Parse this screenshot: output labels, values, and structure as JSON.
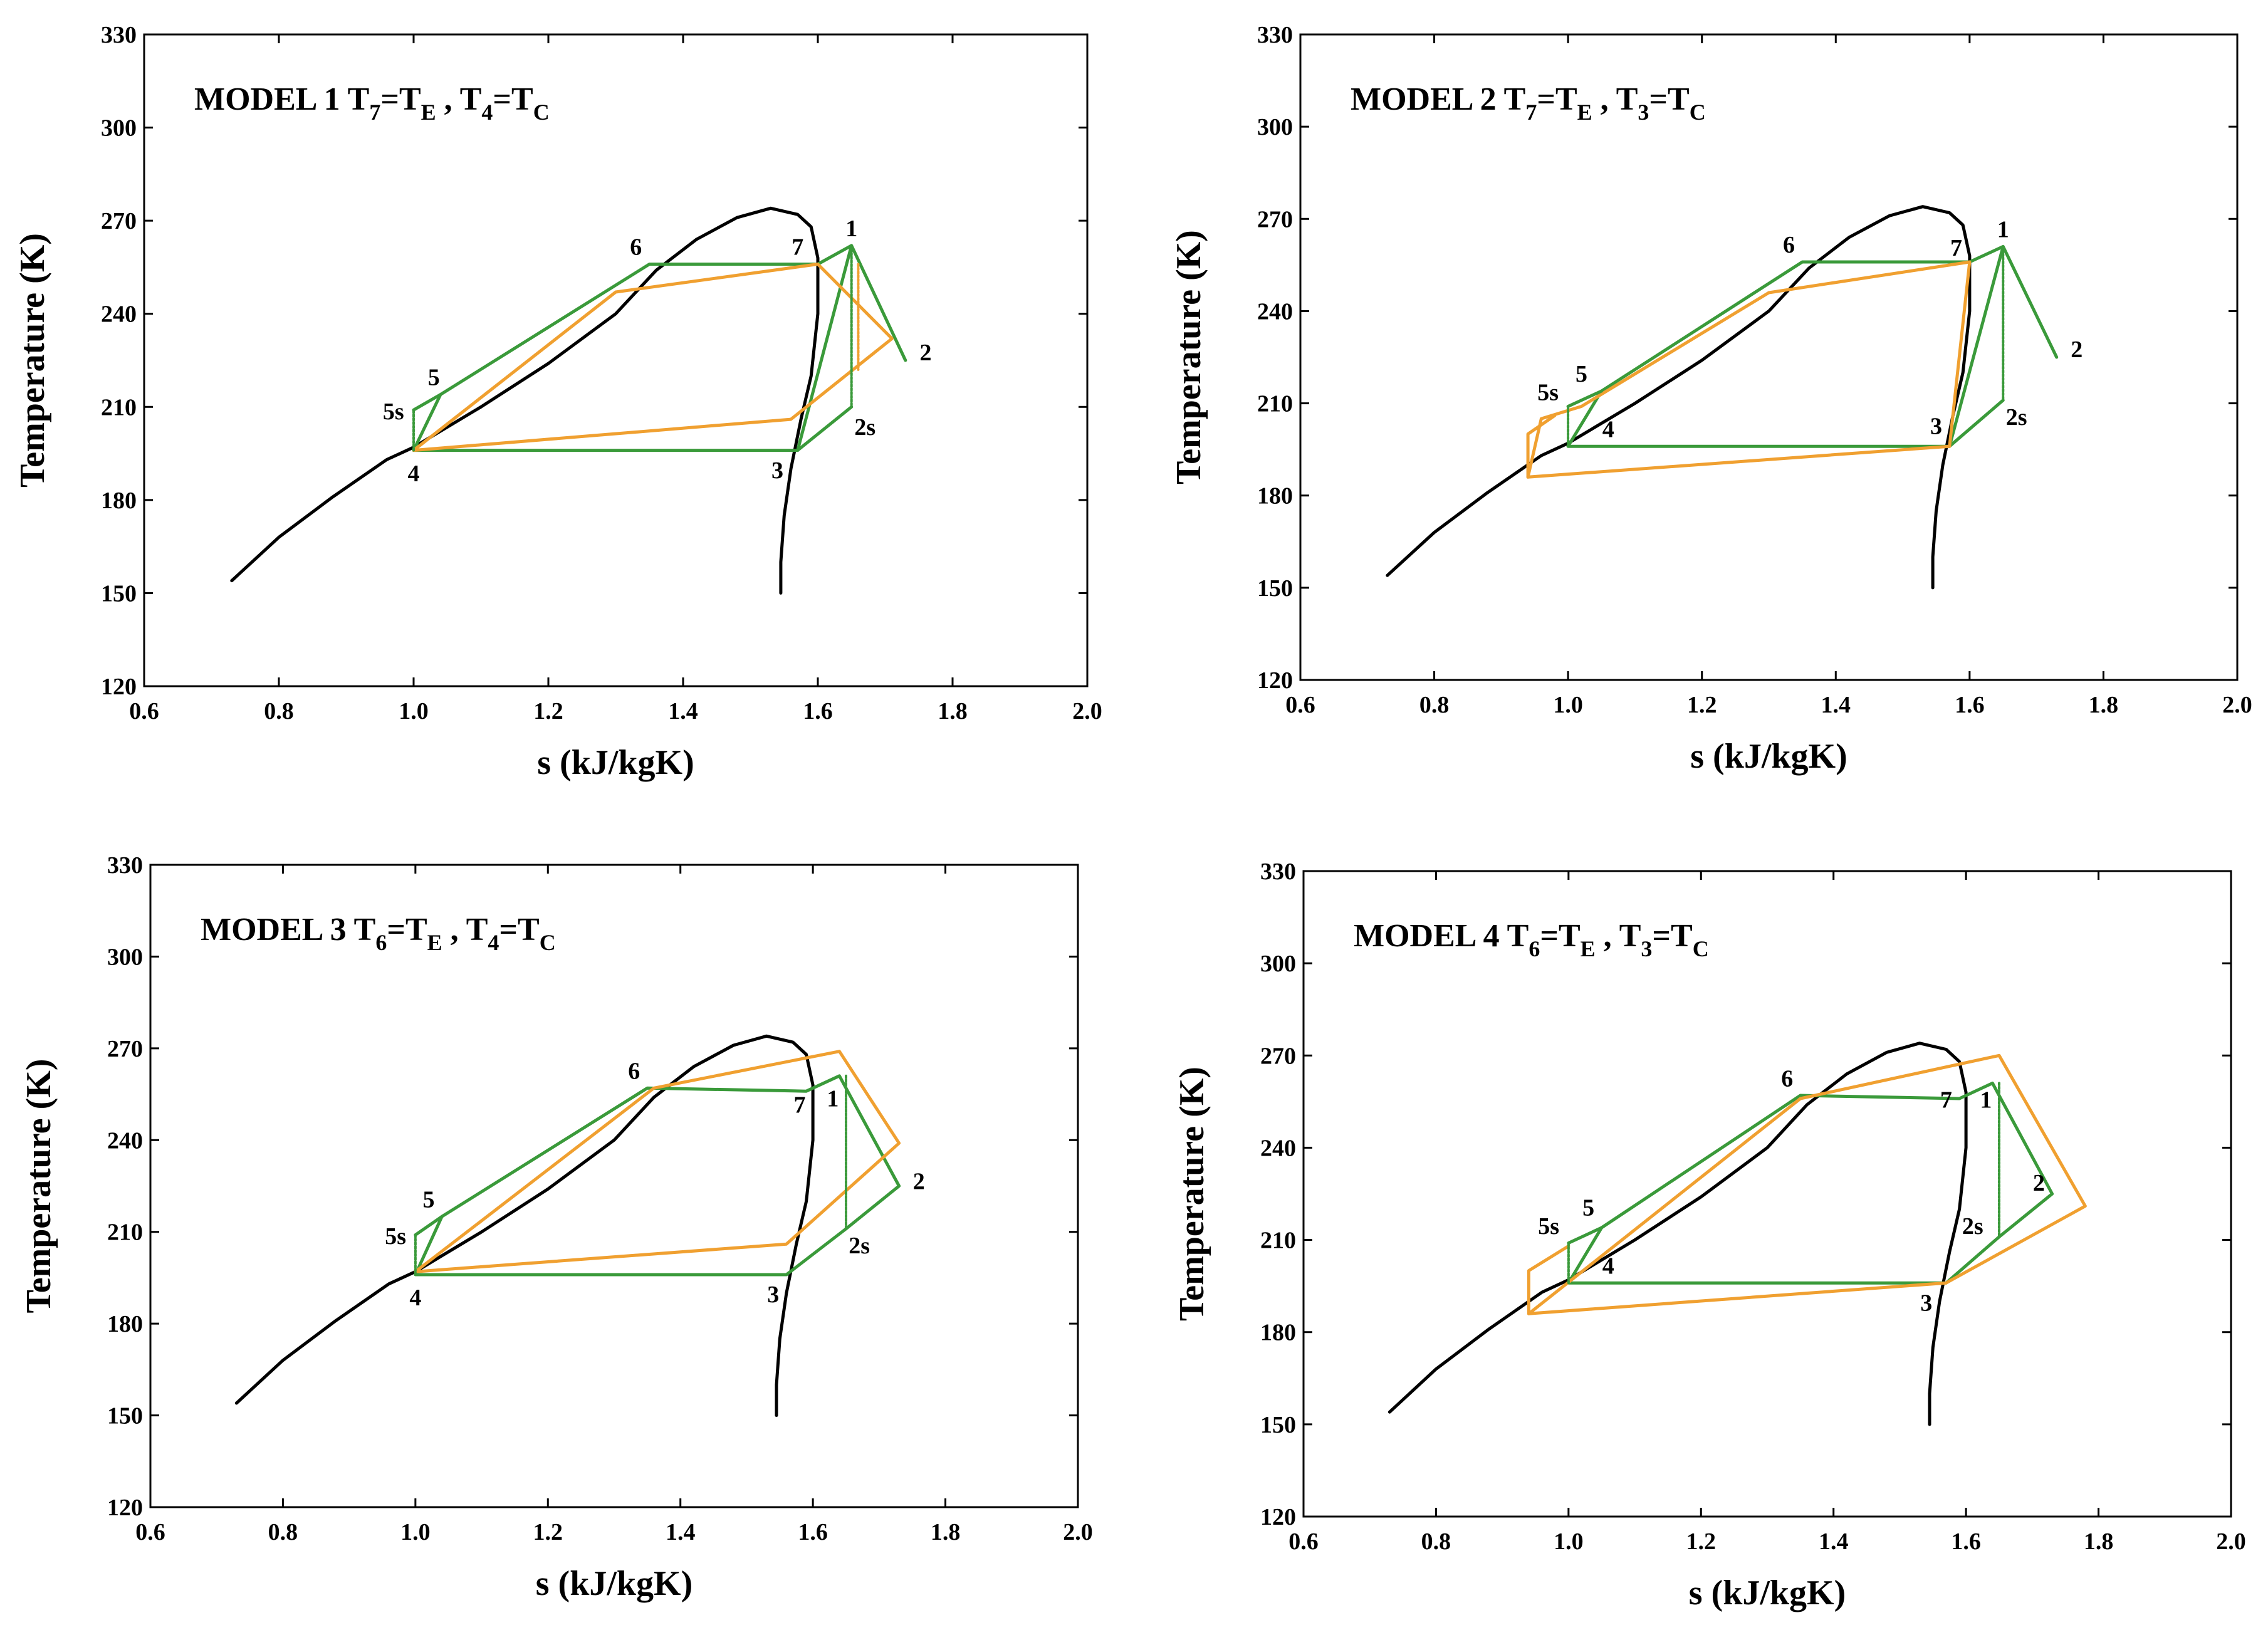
{
  "figure": {
    "charts_note": "Four T-s diagrams (refrigeration cycle models)",
    "colors": {
      "dome": "#000000",
      "green_cycle": "#3a9a3a",
      "orange_cycle": "#f0a030",
      "frame": "#000000"
    }
  },
  "chart_data": [
    {
      "type": "line",
      "title_parts": {
        "model": "MODEL 1",
        "a_sym": "T",
        "a_sub": "7",
        "a_eq": "=T",
        "a_eq_sub": "E",
        "sep": " , ",
        "b_sym": "T",
        "b_sub": "4",
        "b_eq": "=T",
        "b_eq_sub": "C"
      },
      "xlabel": "s (kJ/kgK)",
      "ylabel": "Temperature (K)",
      "xlim": [
        0.6,
        2.0
      ],
      "ylim": [
        120,
        330
      ],
      "xticks": [
        "0.6",
        "0.8",
        "1.0",
        "1.2",
        "1.4",
        "1.6",
        "1.8",
        "2.0"
      ],
      "yticks": [
        "120",
        "150",
        "180",
        "210",
        "240",
        "270",
        "300",
        "330"
      ],
      "series": [
        {
          "name": "saturation-dome",
          "color": "#000000",
          "width": 5,
          "dash": false,
          "x": [
            0.73,
            0.8,
            0.88,
            0.96,
            1.0,
            1.1,
            1.2,
            1.3,
            1.36,
            1.42,
            1.48,
            1.53,
            1.57,
            1.59,
            1.6,
            1.6,
            1.59,
            1.575,
            1.56,
            1.55,
            1.545,
            1.545
          ],
          "y": [
            154,
            168,
            181,
            193,
            197,
            210,
            224,
            240,
            254,
            264,
            271,
            274,
            272,
            268,
            258,
            240,
            220,
            206,
            190,
            175,
            160,
            150
          ]
        },
        {
          "name": "green-cycle",
          "color": "#3a9a3a",
          "width": 5,
          "dash": false,
          "x": [
            1.0,
            1.57,
            1.65,
            1.73,
            1.65,
            1.6,
            1.35,
            1.04,
            1.0
          ],
          "y": [
            196,
            196,
            262,
            225,
            262,
            256,
            256,
            214,
            196
          ]
        },
        {
          "name": "green-hp-lower",
          "color": "#3a9a3a",
          "width": 5,
          "dash": false,
          "x": [
            1.57,
            1.65
          ],
          "y": [
            196,
            210
          ]
        },
        {
          "name": "orange-cycle",
          "color": "#f0a030",
          "width": 5,
          "dash": false,
          "x": [
            1.0,
            1.56,
            1.71,
            1.6,
            1.3,
            1.0
          ],
          "y": [
            196,
            206,
            232,
            256,
            247,
            196
          ]
        },
        {
          "name": "green-isentropic",
          "color": "#3a9a3a",
          "width": 4,
          "dash": true,
          "x": [
            1.65,
            1.65
          ],
          "y": [
            262,
            210
          ]
        },
        {
          "name": "orange-isentropic",
          "color": "#f0a030",
          "width": 4,
          "dash": true,
          "x": [
            1.66,
            1.66
          ],
          "y": [
            256,
            222
          ]
        },
        {
          "name": "green-5s-line",
          "color": "#3a9a3a",
          "width": 4,
          "dash": true,
          "x": [
            1.0,
            1.0
          ],
          "y": [
            196,
            209
          ]
        },
        {
          "name": "green-5s-top",
          "color": "#3a9a3a",
          "width": 5,
          "dash": false,
          "x": [
            1.0,
            1.04
          ],
          "y": [
            209,
            214
          ]
        }
      ],
      "point_labels": [
        {
          "text": "1",
          "x": 1.65,
          "y": 265
        },
        {
          "text": "2",
          "x": 1.76,
          "y": 225
        },
        {
          "text": "2s",
          "x": 1.67,
          "y": 201
        },
        {
          "text": "3",
          "x": 1.54,
          "y": 187
        },
        {
          "text": "4",
          "x": 1.0,
          "y": 186
        },
        {
          "text": "5",
          "x": 1.03,
          "y": 217
        },
        {
          "text": "5s",
          "x": 0.97,
          "y": 206
        },
        {
          "text": "6",
          "x": 1.33,
          "y": 259
        },
        {
          "text": "7",
          "x": 1.57,
          "y": 259
        }
      ]
    },
    {
      "type": "line",
      "title_parts": {
        "model": "MODEL 2",
        "a_sym": "T",
        "a_sub": "7",
        "a_eq": "=T",
        "a_eq_sub": "E",
        "sep": " , ",
        "b_sym": "T",
        "b_sub": "3",
        "b_eq": "=T",
        "b_eq_sub": "C"
      },
      "xlabel": "s (kJ/kgK)",
      "ylabel": "Temperature (K)",
      "xlim": [
        0.6,
        2.0
      ],
      "ylim": [
        120,
        330
      ],
      "xticks": [
        "0.6",
        "0.8",
        "1.0",
        "1.2",
        "1.4",
        "1.6",
        "1.8",
        "2.0"
      ],
      "yticks": [
        "120",
        "150",
        "180",
        "210",
        "240",
        "270",
        "300",
        "330"
      ],
      "series": [
        {
          "name": "saturation-dome",
          "color": "#000000",
          "width": 5,
          "dash": false,
          "x": [
            0.73,
            0.8,
            0.88,
            0.96,
            1.0,
            1.1,
            1.2,
            1.3,
            1.36,
            1.42,
            1.48,
            1.53,
            1.57,
            1.59,
            1.6,
            1.6,
            1.59,
            1.575,
            1.56,
            1.55,
            1.545,
            1.545
          ],
          "y": [
            154,
            168,
            181,
            193,
            197,
            210,
            224,
            240,
            254,
            264,
            271,
            274,
            272,
            268,
            258,
            240,
            220,
            206,
            190,
            175,
            160,
            150
          ]
        },
        {
          "name": "green-cycle",
          "color": "#3a9a3a",
          "width": 5,
          "dash": false,
          "x": [
            1.0,
            1.57,
            1.65,
            1.73,
            1.65,
            1.6,
            1.35,
            1.05,
            1.0
          ],
          "y": [
            196,
            196,
            261,
            225,
            261,
            256,
            256,
            214,
            196
          ]
        },
        {
          "name": "green-hp-lower",
          "color": "#3a9a3a",
          "width": 5,
          "dash": false,
          "x": [
            1.57,
            1.65
          ],
          "y": [
            196,
            211
          ]
        },
        {
          "name": "orange-cycle",
          "color": "#f0a030",
          "width": 5,
          "dash": false,
          "x": [
            0.94,
            1.57,
            1.6,
            1.3,
            1.02,
            0.96,
            0.94
          ],
          "y": [
            186,
            196,
            256,
            246,
            209,
            205,
            186
          ]
        },
        {
          "name": "orange-5s-box",
          "color": "#f0a030",
          "width": 5,
          "dash": false,
          "x": [
            0.94,
            0.94,
            0.98
          ],
          "y": [
            186,
            200,
            206
          ]
        },
        {
          "name": "green-isentropic",
          "color": "#3a9a3a",
          "width": 4,
          "dash": true,
          "x": [
            1.65,
            1.65
          ],
          "y": [
            261,
            211
          ]
        },
        {
          "name": "green-5s-line",
          "color": "#3a9a3a",
          "width": 4,
          "dash": true,
          "x": [
            1.0,
            1.0
          ],
          "y": [
            196,
            209
          ]
        },
        {
          "name": "green-5s-top",
          "color": "#3a9a3a",
          "width": 5,
          "dash": false,
          "x": [
            1.0,
            1.05
          ],
          "y": [
            209,
            214
          ]
        }
      ],
      "point_labels": [
        {
          "text": "1",
          "x": 1.65,
          "y": 264
        },
        {
          "text": "2",
          "x": 1.76,
          "y": 225
        },
        {
          "text": "2s",
          "x": 1.67,
          "y": 203
        },
        {
          "text": "3",
          "x": 1.55,
          "y": 200
        },
        {
          "text": "4",
          "x": 1.06,
          "y": 199
        },
        {
          "text": "5",
          "x": 1.02,
          "y": 217
        },
        {
          "text": "5s",
          "x": 0.97,
          "y": 211
        },
        {
          "text": "6",
          "x": 1.33,
          "y": 259
        },
        {
          "text": "7",
          "x": 1.58,
          "y": 258
        }
      ]
    },
    {
      "type": "line",
      "title_parts": {
        "model": "MODEL 3",
        "a_sym": "T",
        "a_sub": "6",
        "a_eq": "=T",
        "a_eq_sub": "E",
        "sep": " , ",
        "b_sym": "T",
        "b_sub": "4",
        "b_eq": "=T",
        "b_eq_sub": "C"
      },
      "xlabel": "s (kJ/kgK)",
      "ylabel": "Temperature (K)",
      "xlim": [
        0.6,
        2.0
      ],
      "ylim": [
        120,
        330
      ],
      "xticks": [
        "0.6",
        "0.8",
        "1.0",
        "1.2",
        "1.4",
        "1.6",
        "1.8",
        "2.0"
      ],
      "yticks": [
        "120",
        "150",
        "180",
        "210",
        "240",
        "270",
        "300",
        "330"
      ],
      "series": [
        {
          "name": "saturation-dome",
          "color": "#000000",
          "width": 5,
          "dash": false,
          "x": [
            0.73,
            0.8,
            0.88,
            0.96,
            1.0,
            1.1,
            1.2,
            1.3,
            1.36,
            1.42,
            1.48,
            1.53,
            1.57,
            1.59,
            1.6,
            1.6,
            1.59,
            1.575,
            1.56,
            1.55,
            1.545,
            1.545
          ],
          "y": [
            154,
            168,
            181,
            193,
            197,
            210,
            224,
            240,
            254,
            264,
            271,
            274,
            272,
            268,
            258,
            240,
            220,
            206,
            190,
            175,
            160,
            150
          ]
        },
        {
          "name": "green-cycle",
          "color": "#3a9a3a",
          "width": 5,
          "dash": false,
          "x": [
            1.0,
            1.56,
            1.65,
            1.73,
            1.64,
            1.59,
            1.35,
            1.04,
            1.0
          ],
          "y": [
            196,
            196,
            211,
            225,
            261,
            256,
            257,
            215,
            196
          ]
        },
        {
          "name": "orange-cycle",
          "color": "#f0a030",
          "width": 5,
          "dash": false,
          "x": [
            1.0,
            1.56,
            1.73,
            1.64,
            1.36,
            1.0
          ],
          "y": [
            197,
            206,
            239,
            269,
            257,
            197
          ]
        },
        {
          "name": "green-isentropic",
          "color": "#3a9a3a",
          "width": 4,
          "dash": true,
          "x": [
            1.65,
            1.65
          ],
          "y": [
            261,
            211
          ]
        },
        {
          "name": "green-5s-line",
          "color": "#3a9a3a",
          "width": 4,
          "dash": true,
          "x": [
            1.0,
            1.0
          ],
          "y": [
            196,
            209
          ]
        },
        {
          "name": "green-5s-top",
          "color": "#3a9a3a",
          "width": 5,
          "dash": false,
          "x": [
            1.0,
            1.04
          ],
          "y": [
            209,
            215
          ]
        }
      ],
      "point_labels": [
        {
          "text": "1",
          "x": 1.63,
          "y": 251
        },
        {
          "text": "2",
          "x": 1.76,
          "y": 224
        },
        {
          "text": "2s",
          "x": 1.67,
          "y": 203
        },
        {
          "text": "3",
          "x": 1.54,
          "y": 187
        },
        {
          "text": "4",
          "x": 1.0,
          "y": 186
        },
        {
          "text": "5",
          "x": 1.02,
          "y": 218
        },
        {
          "text": "5s",
          "x": 0.97,
          "y": 206
        },
        {
          "text": "6",
          "x": 1.33,
          "y": 260
        },
        {
          "text": "7",
          "x": 1.58,
          "y": 249
        }
      ]
    },
    {
      "type": "line",
      "title_parts": {
        "model": "MODEL 4",
        "a_sym": "T",
        "a_sub": "6",
        "a_eq": "=T",
        "a_eq_sub": "E",
        "sep": " , ",
        "b_sym": "T",
        "b_sub": "3",
        "b_eq": "=T",
        "b_eq_sub": "C"
      },
      "xlabel": "s (kJ/kgK)",
      "ylabel": "Temperature (K)",
      "xlim": [
        0.6,
        2.0
      ],
      "ylim": [
        120,
        330
      ],
      "xticks": [
        "0.6",
        "0.8",
        "1.0",
        "1.2",
        "1.4",
        "1.6",
        "1.8",
        "2.0"
      ],
      "yticks": [
        "120",
        "150",
        "180",
        "210",
        "240",
        "270",
        "300",
        "330"
      ],
      "series": [
        {
          "name": "saturation-dome",
          "color": "#000000",
          "width": 5,
          "dash": false,
          "x": [
            0.73,
            0.8,
            0.88,
            0.96,
            1.0,
            1.1,
            1.2,
            1.3,
            1.36,
            1.42,
            1.48,
            1.53,
            1.57,
            1.59,
            1.6,
            1.6,
            1.59,
            1.575,
            1.56,
            1.55,
            1.545,
            1.545
          ],
          "y": [
            154,
            168,
            181,
            193,
            197,
            210,
            224,
            240,
            254,
            264,
            271,
            274,
            272,
            268,
            258,
            240,
            220,
            206,
            190,
            175,
            160,
            150
          ]
        },
        {
          "name": "green-cycle",
          "color": "#3a9a3a",
          "width": 5,
          "dash": false,
          "x": [
            1.0,
            1.57,
            1.65,
            1.73,
            1.64,
            1.59,
            1.35,
            1.05,
            1.0
          ],
          "y": [
            196,
            196,
            211,
            225,
            261,
            256,
            257,
            214,
            196
          ]
        },
        {
          "name": "orange-cycle",
          "color": "#f0a030",
          "width": 5,
          "dash": false,
          "x": [
            0.94,
            1.57,
            1.78,
            1.65,
            1.35,
            0.94
          ],
          "y": [
            186,
            196,
            221,
            270,
            256,
            186
          ]
        },
        {
          "name": "orange-5s-box",
          "color": "#f0a030",
          "width": 5,
          "dash": false,
          "x": [
            0.94,
            0.94,
            1.0
          ],
          "y": [
            186,
            200,
            208
          ]
        },
        {
          "name": "green-isentropic",
          "color": "#3a9a3a",
          "width": 4,
          "dash": true,
          "x": [
            1.65,
            1.65
          ],
          "y": [
            261,
            211
          ]
        },
        {
          "name": "green-5s-line",
          "color": "#3a9a3a",
          "width": 4,
          "dash": true,
          "x": [
            1.0,
            1.0
          ],
          "y": [
            196,
            209
          ]
        },
        {
          "name": "green-5s-top",
          "color": "#3a9a3a",
          "width": 5,
          "dash": false,
          "x": [
            1.0,
            1.05
          ],
          "y": [
            209,
            214
          ]
        }
      ],
      "point_labels": [
        {
          "text": "1",
          "x": 1.63,
          "y": 253
        },
        {
          "text": "2",
          "x": 1.71,
          "y": 226
        },
        {
          "text": "2s",
          "x": 1.61,
          "y": 212
        },
        {
          "text": "3",
          "x": 1.54,
          "y": 187
        },
        {
          "text": "4",
          "x": 1.06,
          "y": 199
        },
        {
          "text": "5",
          "x": 1.03,
          "y": 218
        },
        {
          "text": "5s",
          "x": 0.97,
          "y": 212
        },
        {
          "text": "6",
          "x": 1.33,
          "y": 260
        },
        {
          "text": "7",
          "x": 1.57,
          "y": 253
        }
      ]
    }
  ]
}
